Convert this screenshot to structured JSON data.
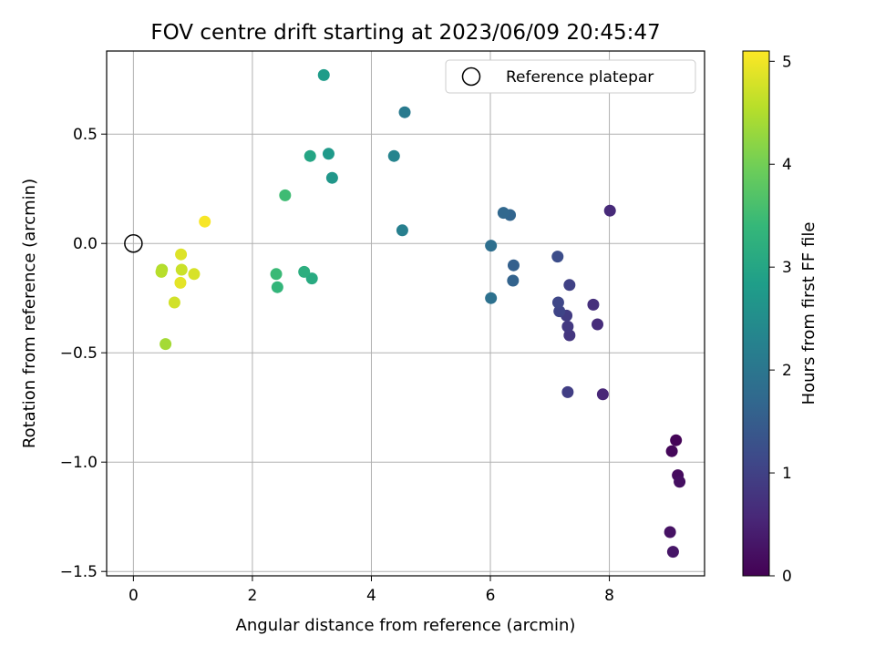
{
  "chart_data": {
    "type": "scatter",
    "title": "FOV centre drift starting at 2023/06/09 20:45:47",
    "xlabel": "Angular distance from reference (arcmin)",
    "ylabel": "Rotation from reference (arcmin)",
    "xlim": [
      -0.45,
      9.6
    ],
    "ylim": [
      -1.52,
      0.88
    ],
    "xticks": [
      0,
      2,
      4,
      6,
      8
    ],
    "xtick_labels": [
      "0",
      "2",
      "4",
      "6",
      "8"
    ],
    "yticks": [
      -1.5,
      -1.0,
      -0.5,
      0.0,
      0.5
    ],
    "ytick_labels": [
      "−1.5",
      "−1.0",
      "−0.5",
      "0.0",
      "0.5"
    ],
    "grid": true,
    "legend": {
      "placement": "top-right",
      "entries": [
        "Reference platepar"
      ]
    },
    "reference_point": {
      "x": 0,
      "y": 0,
      "label": "Reference platepar"
    },
    "colorbar": {
      "label": "Hours from first FF file",
      "colormap": "viridis",
      "range": [
        0,
        5.1
      ],
      "ticks": [
        0,
        1,
        2,
        3,
        4,
        5
      ],
      "tick_labels": [
        "0",
        "1",
        "2",
        "3",
        "4",
        "5"
      ]
    },
    "points": [
      {
        "x": 9.12,
        "y": -0.9,
        "hours": 0.05
      },
      {
        "x": 9.05,
        "y": -0.95,
        "hours": 0.1
      },
      {
        "x": 9.15,
        "y": -1.06,
        "hours": 0.15
      },
      {
        "x": 9.18,
        "y": -1.09,
        "hours": 0.2
      },
      {
        "x": 9.02,
        "y": -1.32,
        "hours": 0.25
      },
      {
        "x": 9.07,
        "y": -1.41,
        "hours": 0.3
      },
      {
        "x": 7.89,
        "y": -0.69,
        "hours": 0.55
      },
      {
        "x": 8.01,
        "y": 0.15,
        "hours": 0.6
      },
      {
        "x": 7.8,
        "y": -0.37,
        "hours": 0.65
      },
      {
        "x": 7.73,
        "y": -0.28,
        "hours": 0.7
      },
      {
        "x": 7.33,
        "y": -0.42,
        "hours": 0.8
      },
      {
        "x": 7.3,
        "y": -0.38,
        "hours": 0.85
      },
      {
        "x": 7.28,
        "y": -0.33,
        "hours": 0.9
      },
      {
        "x": 7.3,
        "y": -0.68,
        "hours": 0.95
      },
      {
        "x": 7.33,
        "y": -0.19,
        "hours": 1.0
      },
      {
        "x": 7.16,
        "y": -0.31,
        "hours": 1.05
      },
      {
        "x": 7.14,
        "y": -0.27,
        "hours": 1.1
      },
      {
        "x": 7.13,
        "y": -0.06,
        "hours": 1.2
      },
      {
        "x": 6.39,
        "y": -0.1,
        "hours": 1.55
      },
      {
        "x": 6.38,
        "y": -0.17,
        "hours": 1.6
      },
      {
        "x": 6.33,
        "y": 0.13,
        "hours": 1.65
      },
      {
        "x": 6.22,
        "y": 0.14,
        "hours": 1.7
      },
      {
        "x": 6.01,
        "y": -0.01,
        "hours": 1.85
      },
      {
        "x": 6.01,
        "y": -0.25,
        "hours": 1.9
      },
      {
        "x": 4.56,
        "y": 0.6,
        "hours": 2.1
      },
      {
        "x": 4.52,
        "y": 0.06,
        "hours": 2.2
      },
      {
        "x": 4.38,
        "y": 0.4,
        "hours": 2.3
      },
      {
        "x": 3.34,
        "y": 0.3,
        "hours": 2.7
      },
      {
        "x": 3.28,
        "y": 0.41,
        "hours": 2.75
      },
      {
        "x": 3.2,
        "y": 0.77,
        "hours": 2.8
      },
      {
        "x": 2.97,
        "y": 0.4,
        "hours": 3.0
      },
      {
        "x": 3.0,
        "y": -0.16,
        "hours": 3.1
      },
      {
        "x": 2.87,
        "y": -0.13,
        "hours": 3.2
      },
      {
        "x": 2.55,
        "y": 0.22,
        "hours": 3.5
      },
      {
        "x": 2.42,
        "y": -0.2,
        "hours": 3.35
      },
      {
        "x": 2.4,
        "y": -0.14,
        "hours": 3.45
      },
      {
        "x": 0.54,
        "y": -0.46,
        "hours": 4.4
      },
      {
        "x": 0.48,
        "y": -0.12,
        "hours": 4.5
      },
      {
        "x": 0.47,
        "y": -0.13,
        "hours": 4.55
      },
      {
        "x": 0.69,
        "y": -0.27,
        "hours": 4.75
      },
      {
        "x": 0.81,
        "y": -0.12,
        "hours": 4.7
      },
      {
        "x": 0.8,
        "y": -0.05,
        "hours": 4.85
      },
      {
        "x": 0.79,
        "y": -0.18,
        "hours": 4.9
      },
      {
        "x": 1.02,
        "y": -0.14,
        "hours": 4.8
      },
      {
        "x": 1.2,
        "y": 0.1,
        "hours": 5.05
      }
    ]
  }
}
